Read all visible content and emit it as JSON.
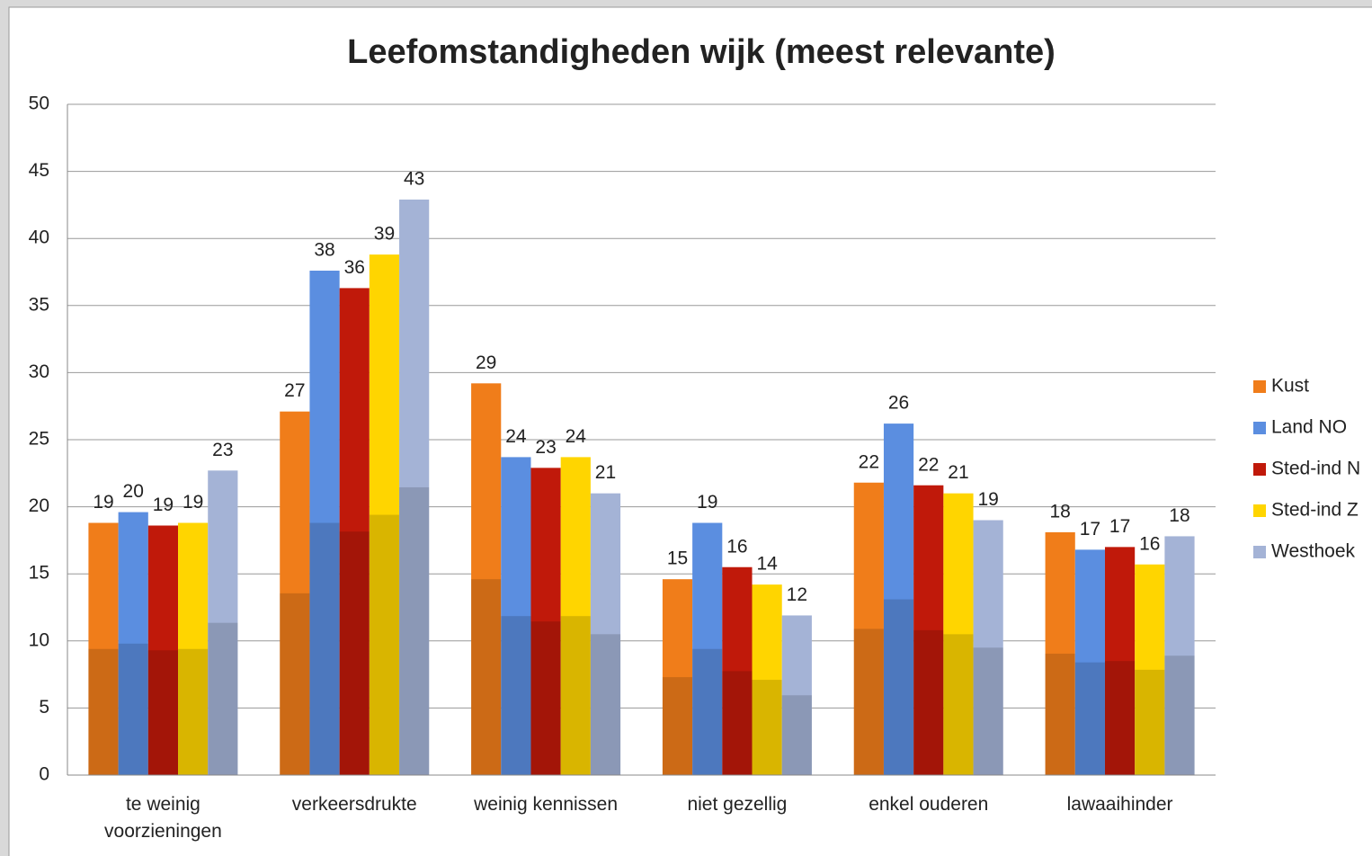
{
  "chart_data": {
    "type": "bar",
    "title": "Leefomstandigheden wijk (meest relevante)",
    "categories": [
      "te weinig voorzieningen",
      "verkeersdrukte",
      "weinig kennissen",
      "niet gezellig",
      "enkel ouderen",
      "lawaaihinder"
    ],
    "series": [
      {
        "name": "Kust",
        "color": "#f07d1a",
        "values": [
          18.8,
          27.1,
          29.2,
          14.6,
          21.8,
          18.1
        ],
        "value_labels": [
          "19",
          "27",
          "29",
          "15",
          "22",
          "18"
        ]
      },
      {
        "name": "Land NO",
        "color": "#5b8ee0",
        "values": [
          19.6,
          37.6,
          23.7,
          18.8,
          26.2,
          16.8
        ],
        "value_labels": [
          "20",
          "38",
          "24",
          "19",
          "26",
          "17"
        ]
      },
      {
        "name": "Sted-ind N",
        "color": "#c0190a",
        "values": [
          18.6,
          36.3,
          22.9,
          15.5,
          21.6,
          17.0
        ],
        "value_labels": [
          "19",
          "36",
          "23",
          "16",
          "22",
          "17"
        ]
      },
      {
        "name": "Sted-ind Z",
        "color": "#ffd500",
        "values": [
          18.8,
          38.8,
          23.7,
          14.2,
          21.0,
          15.7
        ],
        "value_labels": [
          "19",
          "39",
          "24",
          "14",
          "21",
          "16"
        ]
      },
      {
        "name": "Westhoek",
        "color": "#a4b3d6",
        "values": [
          22.7,
          42.9,
          21.0,
          11.9,
          19.0,
          17.8
        ],
        "value_labels": [
          "23",
          "43",
          "21",
          "12",
          "19",
          "18"
        ]
      }
    ],
    "ylim": [
      0,
      50
    ],
    "yticks": [
      0,
      5,
      10,
      15,
      20,
      25,
      30,
      35,
      40,
      45,
      50
    ],
    "grid": true,
    "legend": "right"
  }
}
